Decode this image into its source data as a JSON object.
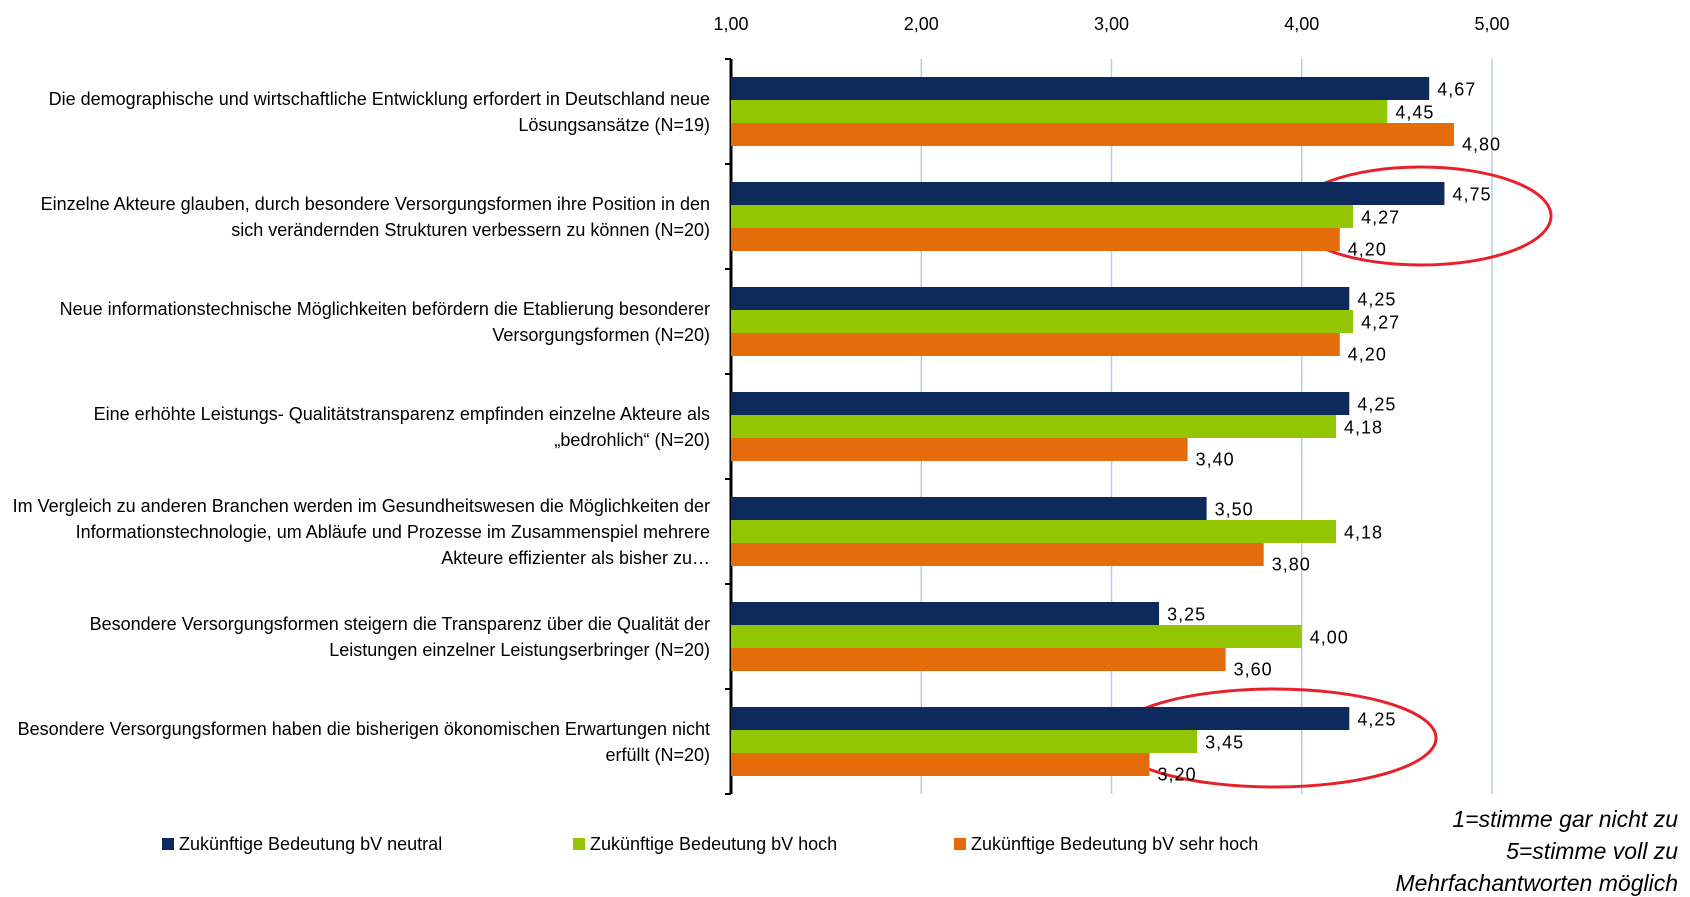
{
  "chart_data": {
    "type": "barh",
    "categories": [
      "Die demographische und wirtschaftliche Entwicklung erfordert in Deutschland neue Lösungsansätze (N=19)",
      "Einzelne Akteure glauben, durch besondere Versorgungsformen ihre Position in den sich verändernden Strukturen verbessern zu können (N=20)",
      "Neue informationstechnische Möglichkeiten befördern die Etablierung besonderer Versorgungsformen (N=20)",
      "Eine erhöhte Leistungs- Qualitätstransparenz empfinden einzelne Akteure als „bedrohlich“ (N=20)",
      "Im Vergleich zu anderen Branchen werden im Gesundheitswesen die Möglichkeiten der Informationstechnologie, um Abläufe und Prozesse im Zusammenspiel mehrere Akteure effizienter als bisher zu…",
      "Besondere Versorgungsformen steigern die Transparenz über die Qualität der Leistungen einzelner Leistungserbringer (N=20)",
      "Besondere Versorgungsformen haben die bisherigen ökonomischen Erwartungen nicht erfüllt (N=20)"
    ],
    "series": [
      {
        "name": "Zukünftige Bedeutung bV neutral",
        "color": "#0e2a5c",
        "values": [
          4.67,
          4.75,
          4.25,
          4.25,
          3.5,
          3.25,
          4.25
        ],
        "value_labels": [
          "4,67",
          "4,75",
          "4,25",
          "4,25",
          "3,50",
          "3,25",
          "4,25"
        ]
      },
      {
        "name": "Zukünftige Bedeutung bV hoch",
        "color": "#92c600",
        "values": [
          4.45,
          4.27,
          4.27,
          4.18,
          4.18,
          4.0,
          3.45
        ],
        "value_labels": [
          "4,45",
          "4,27",
          "4,27",
          "4,18",
          "4,18",
          "4,00",
          "3,45"
        ]
      },
      {
        "name": "Zukünftige Bedeutung bV sehr hoch",
        "color": "#e46c0a",
        "values": [
          4.8,
          4.2,
          4.2,
          3.4,
          3.8,
          3.6,
          3.2
        ],
        "value_labels": [
          "4,80",
          "4,20",
          "4,20",
          "3,40",
          "3,80",
          "3,60",
          "3,20"
        ]
      }
    ],
    "xlim": [
      1,
      5
    ],
    "xticks": [
      {
        "value": 1,
        "label": "1,00"
      },
      {
        "value": 2,
        "label": "2,00"
      },
      {
        "value": 3,
        "label": "3,00"
      },
      {
        "value": 4,
        "label": "4,00"
      },
      {
        "value": 5,
        "label": "5,00"
      }
    ],
    "grid": true,
    "legend": "bottom",
    "annotations": [
      "1=stimme gar nicht zu",
      "5=stimme voll zu",
      "Mehrfachantworten möglich"
    ]
  }
}
